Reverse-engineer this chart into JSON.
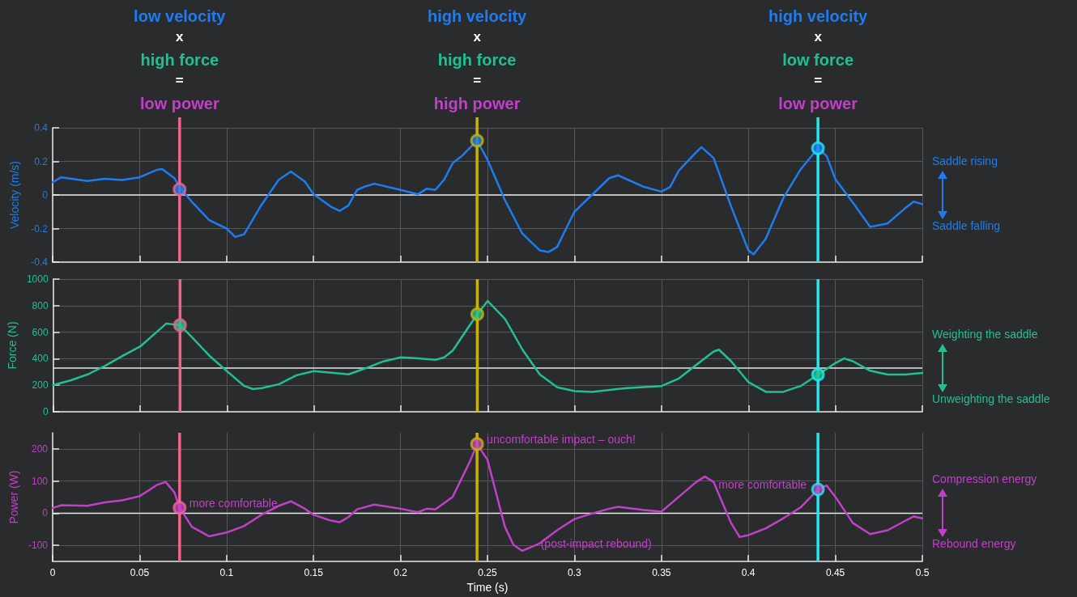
{
  "chart_data": [
    {
      "type": "line",
      "ylabel": "Velocity (m/s)",
      "xlim": [
        0,
        0.5
      ],
      "xticks": [
        0,
        0.05,
        0.1,
        0.15,
        0.2,
        0.25,
        0.3,
        0.35,
        0.4,
        0.45,
        0.5
      ],
      "ylim": [
        -0.4,
        0.4
      ],
      "yticks": [
        -0.4,
        -0.2,
        0,
        0.2,
        0.4
      ],
      "grid": true,
      "tick_labels": "y",
      "line_style": "solid",
      "series": [
        {
          "color": "#1e7cf0",
          "x": [
            0,
            0.005,
            0.01,
            0.02,
            0.03,
            0.04,
            0.05,
            0.06,
            0.063,
            0.07,
            0.074,
            0.08,
            0.09,
            0.1,
            0.105,
            0.11,
            0.12,
            0.125,
            0.13,
            0.137,
            0.145,
            0.15,
            0.16,
            0.165,
            0.17,
            0.175,
            0.18,
            0.185,
            0.2,
            0.21,
            0.215,
            0.22,
            0.225,
            0.23,
            0.235,
            0.244,
            0.25,
            0.26,
            0.27,
            0.28,
            0.285,
            0.29,
            0.3,
            0.31,
            0.32,
            0.325,
            0.33,
            0.34,
            0.35,
            0.355,
            0.36,
            0.37,
            0.373,
            0.38,
            0.39,
            0.4,
            0.403,
            0.41,
            0.42,
            0.43,
            0.44,
            0.445,
            0.45,
            0.46,
            0.47,
            0.48,
            0.49,
            0.495,
            0.5
          ],
          "values": [
            0.076,
            0.105,
            0.098,
            0.083,
            0.096,
            0.089,
            0.105,
            0.15,
            0.154,
            0.1,
            0.033,
            -0.04,
            -0.15,
            -0.2,
            -0.25,
            -0.235,
            -0.06,
            0.015,
            0.09,
            0.14,
            0.08,
            0.005,
            -0.07,
            -0.095,
            -0.063,
            0.03,
            0.052,
            0.067,
            0.03,
            0.004,
            0.037,
            0.03,
            0.09,
            0.19,
            0.23,
            0.324,
            0.21,
            -0.03,
            -0.23,
            -0.33,
            -0.34,
            -0.31,
            -0.1,
            0,
            0.1,
            0.117,
            0.094,
            0.048,
            0.02,
            0.048,
            0.145,
            0.255,
            0.285,
            0.22,
            -0.067,
            -0.33,
            -0.354,
            -0.26,
            -0.02,
            0.152,
            0.278,
            0.232,
            0.094,
            -0.044,
            -0.19,
            -0.17,
            -0.08,
            -0.04,
            -0.055
          ]
        },
        {
          "type": "scatter",
          "marker": "circle",
          "color": "#1e7cf0",
          "colors": [
            "#f0648c",
            "#c8b400",
            "#20e8f0"
          ],
          "x": [
            0.073,
            0.244,
            0.44
          ],
          "values": [
            0.033,
            0.324,
            0.278
          ]
        }
      ],
      "ref_lines": [
        {
          "axis": "y",
          "value": 0,
          "color": "#e8e8e8"
        },
        {
          "axis": "x",
          "value": 0.073,
          "color": "#f0648c",
          "label": "low velocity\nx\nhigh force\n=\nlow power"
        },
        {
          "axis": "x",
          "value": 0.244,
          "color": "#c8b400",
          "label": "high velocity\nx\nhigh force\n=\nhigh power"
        },
        {
          "axis": "x",
          "value": 0.44,
          "color": "#20e8f0",
          "label": "high velocity\nx\nlow force\n=\nlow power"
        }
      ],
      "annotations": [
        "Saddle rising",
        "Saddle falling"
      ]
    },
    {
      "type": "line",
      "ylabel": "Force (N)",
      "xlim": [
        0,
        0.5
      ],
      "xticks": [
        0,
        0.05,
        0.1,
        0.15,
        0.2,
        0.25,
        0.3,
        0.35,
        0.4,
        0.45,
        0.5
      ],
      "ylim": [
        0,
        1000
      ],
      "yticks": [
        0,
        200,
        400,
        600,
        800,
        1000
      ],
      "grid": true,
      "tick_labels": "y",
      "line_style": "solid",
      "series": [
        {
          "color": "#20c090",
          "x": [
            0,
            0.01,
            0.02,
            0.03,
            0.04,
            0.05,
            0.06,
            0.065,
            0.073,
            0.08,
            0.09,
            0.1,
            0.11,
            0.115,
            0.12,
            0.13,
            0.14,
            0.15,
            0.16,
            0.17,
            0.18,
            0.19,
            0.2,
            0.21,
            0.22,
            0.225,
            0.23,
            0.244,
            0.25,
            0.26,
            0.27,
            0.28,
            0.29,
            0.3,
            0.31,
            0.33,
            0.35,
            0.36,
            0.37,
            0.38,
            0.383,
            0.39,
            0.4,
            0.41,
            0.42,
            0.43,
            0.44,
            0.45,
            0.455,
            0.46,
            0.47,
            0.48,
            0.49,
            0.5
          ],
          "values": [
            201,
            236,
            282,
            347,
            421,
            491,
            606,
            664,
            653,
            560,
            421,
            306,
            194,
            171,
            178,
            208,
            275,
            306,
            294,
            282,
            329,
            380,
            410,
            403,
            391,
            410,
            463,
            736,
            835,
            699,
            468,
            280,
            185,
            156,
            150,
            179,
            194,
            251,
            353,
            454,
            468,
            381,
            223,
            150,
            150,
            194,
            280,
            367,
            402,
            381,
            309,
            280,
            280,
            292
          ]
        },
        {
          "type": "scatter",
          "marker": "circle",
          "color": "#20c090",
          "colors": [
            "#f0648c",
            "#c8b400",
            "#20e8f0"
          ],
          "x": [
            0.073,
            0.244,
            0.44
          ],
          "values": [
            653,
            736,
            280
          ]
        }
      ],
      "ref_lines": [
        {
          "axis": "y",
          "value": 330,
          "color": "#e8e8e8"
        },
        {
          "axis": "x",
          "value": 0.073,
          "color": "#f0648c"
        },
        {
          "axis": "x",
          "value": 0.244,
          "color": "#c8b400"
        },
        {
          "axis": "x",
          "value": 0.44,
          "color": "#20e8f0"
        }
      ],
      "annotations": [
        "Weighting the saddle",
        "Unweighting the saddle"
      ]
    },
    {
      "type": "line",
      "xlabel": "Time (s)",
      "ylabel": "Power (W)",
      "xlim": [
        0,
        0.5
      ],
      "xticks": [
        0,
        0.05,
        0.1,
        0.15,
        0.2,
        0.25,
        0.3,
        0.35,
        0.4,
        0.45,
        0.5
      ],
      "ylim": [
        -150,
        250
      ],
      "yticks": [
        -100,
        0,
        100,
        200
      ],
      "grid": true,
      "line_style": "solid",
      "series": [
        {
          "color": "#c040c8",
          "x": [
            0,
            0.005,
            0.02,
            0.03,
            0.04,
            0.05,
            0.06,
            0.065,
            0.07,
            0.073,
            0.08,
            0.09,
            0.1,
            0.11,
            0.12,
            0.13,
            0.137,
            0.145,
            0.15,
            0.16,
            0.165,
            0.17,
            0.175,
            0.185,
            0.2,
            0.21,
            0.215,
            0.22,
            0.23,
            0.24,
            0.244,
            0.25,
            0.26,
            0.265,
            0.27,
            0.28,
            0.29,
            0.3,
            0.31,
            0.32,
            0.325,
            0.34,
            0.35,
            0.36,
            0.37,
            0.375,
            0.38,
            0.39,
            0.395,
            0.4,
            0.41,
            0.42,
            0.43,
            0.44,
            0.445,
            0.45,
            0.46,
            0.47,
            0.48,
            0.49,
            0.495,
            0.5
          ],
          "values": [
            16,
            25,
            23,
            34,
            40,
            53,
            88,
            97,
            65,
            17,
            -42,
            -72,
            -60,
            -40,
            -5,
            23,
            37,
            14,
            -5,
            -23,
            -28,
            -12,
            12,
            27,
            14,
            3,
            14,
            12,
            51,
            162,
            215,
            166,
            -42,
            -99,
            -117,
            -94,
            -53,
            -18,
            -1,
            14,
            20,
            10,
            5,
            51,
            97,
            114,
            97,
            -30,
            -74,
            -68,
            -47,
            -16,
            18,
            74,
            86,
            51,
            -30,
            -65,
            -53,
            -24,
            -10,
            -16
          ]
        },
        {
          "type": "scatter",
          "marker": "circle",
          "color": "#c040c8",
          "colors": [
            "#f0648c",
            "#c8b400",
            "#20e8f0"
          ],
          "x": [
            0.073,
            0.244,
            0.44
          ],
          "values": [
            17,
            215,
            74
          ]
        }
      ],
      "ref_lines": [
        {
          "axis": "y",
          "value": 0,
          "color": "#e8e8e8"
        },
        {
          "axis": "x",
          "value": 0.073,
          "color": "#f0648c"
        },
        {
          "axis": "x",
          "value": 0.244,
          "color": "#c8b400"
        },
        {
          "axis": "x",
          "value": 0.44,
          "color": "#20e8f0"
        }
      ],
      "annotations": [
        "Compression energy",
        "Rebound energy",
        {
          "text": "more comfortable",
          "x": 0.073,
          "y": 17
        },
        {
          "text": "uncomfortable impact – ouch!",
          "x": 0.244,
          "y": 215
        },
        {
          "text": "(post-impact rebound)",
          "x": 0.275,
          "y": -110
        },
        {
          "text": "more comfortable",
          "x": 0.44,
          "y": 74
        }
      ]
    }
  ]
}
